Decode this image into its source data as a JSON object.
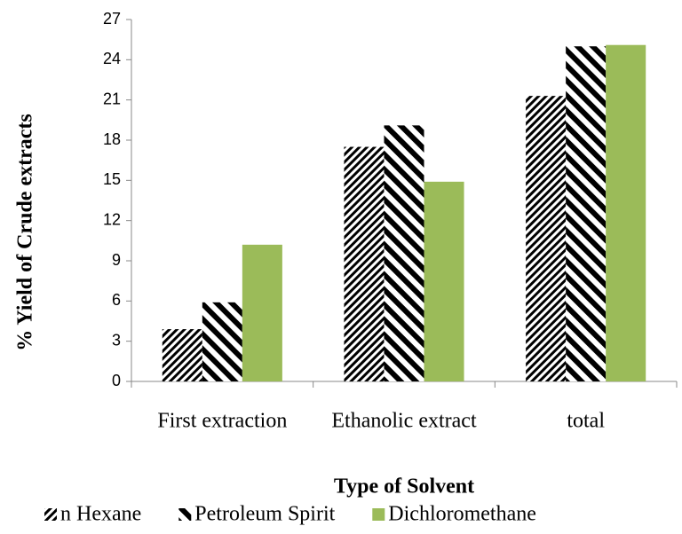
{
  "chart_data": {
    "type": "bar",
    "x_label": "Type of Solvent",
    "y_label": "% Yield of Crude extracts",
    "categories": [
      "First extraction",
      "Ethanolic extract",
      "total"
    ],
    "series": [
      {
        "name": "n Hexane",
        "color": "#000000",
        "hatch": "fine",
        "values": [
          3.9,
          17.5,
          21.3
        ]
      },
      {
        "name": "Petroleum Spirit",
        "color": "#000000",
        "hatch": "wide",
        "values": [
          5.9,
          19.1,
          25.0
        ]
      },
      {
        "name": "Dichloromethane",
        "color": "#9bbb59",
        "hatch": null,
        "values": [
          10.2,
          14.9,
          25.1
        ]
      }
    ],
    "ylim": [
      0,
      27
    ],
    "yticks": [
      0,
      3,
      6,
      9,
      12,
      15,
      18,
      21,
      24,
      27
    ],
    "legend": "bottom"
  }
}
